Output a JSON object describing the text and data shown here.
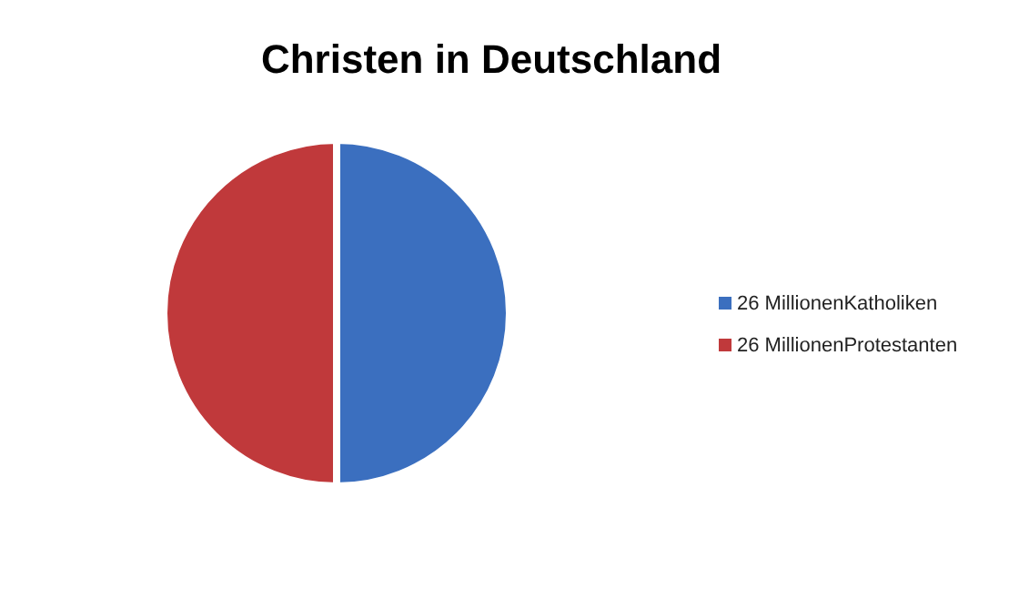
{
  "chart_data": {
    "type": "pie",
    "title": "Christen in Deutschland",
    "categories": [
      "26 MillionenKatholiken",
      "26 MillionenProtestanten"
    ],
    "values": [
      26,
      26
    ],
    "colors": [
      "#3b6fbf",
      "#c0393b"
    ],
    "legend": "right"
  }
}
